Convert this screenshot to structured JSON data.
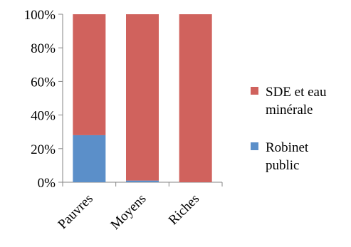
{
  "chart_data": {
    "type": "bar",
    "stacked": "percent",
    "categories": [
      "Pauvres",
      "Moyens",
      "Riches"
    ],
    "series": [
      {
        "name": "Robinet public",
        "values": [
          28,
          1,
          0
        ],
        "color": "#5b8fc9"
      },
      {
        "name": "SDE et eau minérale",
        "values": [
          72,
          99,
          100
        ],
        "color": "#d0625d"
      }
    ],
    "ylim": [
      0,
      100
    ],
    "y_ticks": [
      "0%",
      "20%",
      "40%",
      "60%",
      "80%",
      "100%"
    ],
    "grid": false,
    "legend": {
      "position": "right",
      "entries": [
        {
          "series": 1,
          "lines": [
            "SDE et eau",
            "minérale"
          ]
        },
        {
          "series": 0,
          "lines": [
            "Robinet",
            "public"
          ]
        }
      ]
    },
    "axis_color": "#868686"
  }
}
